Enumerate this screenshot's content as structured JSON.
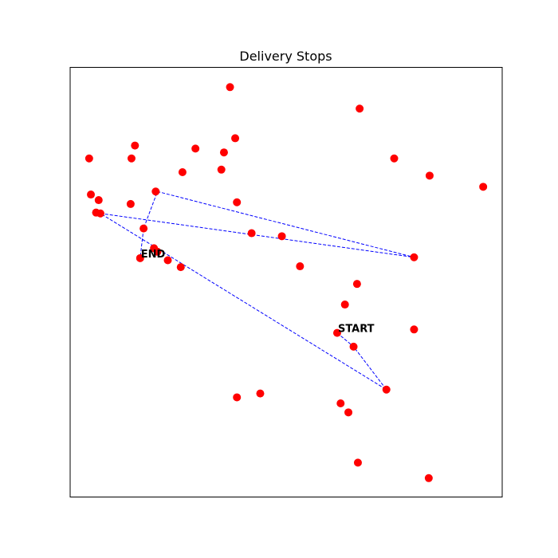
{
  "chart_data": {
    "type": "scatter",
    "title": "Delivery Stops",
    "xlabel": "",
    "ylabel": "",
    "xlim": [
      0,
      100
    ],
    "ylim": [
      0,
      100
    ],
    "grid": false,
    "axes_ticks_visible": false,
    "colors": {
      "stop": "#ff0000",
      "route": "#0000ff"
    },
    "series": [
      {
        "kind": "points",
        "points": [
          [
            37,
            95.4
          ],
          [
            67,
            90.4
          ],
          [
            15,
            81.8
          ],
          [
            29,
            81.1
          ],
          [
            4.4,
            78.8
          ],
          [
            14.2,
            78.8
          ],
          [
            35.6,
            80.2
          ],
          [
            38.2,
            83.5
          ],
          [
            75,
            78.8
          ],
          [
            26,
            75.6
          ],
          [
            35,
            76.2
          ],
          [
            4.8,
            70.4
          ],
          [
            6.6,
            69.1
          ],
          [
            14,
            68.2
          ],
          [
            19.8,
            71.1
          ],
          [
            38.6,
            68.6
          ],
          [
            83.2,
            74.8
          ],
          [
            95.6,
            72.2
          ],
          [
            6,
            66.2
          ],
          [
            7,
            66.0
          ],
          [
            17,
            62.5
          ],
          [
            42,
            61.4
          ],
          [
            49,
            60.7
          ],
          [
            19.4,
            57.9
          ],
          [
            20.2,
            57.1
          ],
          [
            16.2,
            55.6
          ],
          [
            22.6,
            55.1
          ],
          [
            25.6,
            53.5
          ],
          [
            53.2,
            53.7
          ],
          [
            79.6,
            55.8
          ],
          [
            66.4,
            49.6
          ],
          [
            63.6,
            44.8
          ],
          [
            61.8,
            38.2
          ],
          [
            65.6,
            35.0
          ],
          [
            79.6,
            39.0
          ],
          [
            73.2,
            25.0
          ],
          [
            44,
            24.1
          ],
          [
            38.6,
            23.2
          ],
          [
            62.6,
            21.8
          ],
          [
            64.4,
            19.7
          ],
          [
            66.6,
            8.0
          ],
          [
            83,
            4.4
          ]
        ]
      },
      {
        "kind": "route",
        "points": [
          [
            61.8,
            38.2
          ],
          [
            65.6,
            35.0
          ],
          [
            73.2,
            25.0
          ],
          [
            7,
            66.0
          ],
          [
            79.6,
            55.8
          ],
          [
            20.2,
            71.1
          ],
          [
            17,
            62.5
          ],
          [
            16.2,
            55.6
          ]
        ]
      }
    ],
    "annotations": [
      {
        "text": "START",
        "x": 61.8,
        "y": 38.2
      },
      {
        "text": "END",
        "x": 16.2,
        "y": 55.6
      }
    ]
  }
}
